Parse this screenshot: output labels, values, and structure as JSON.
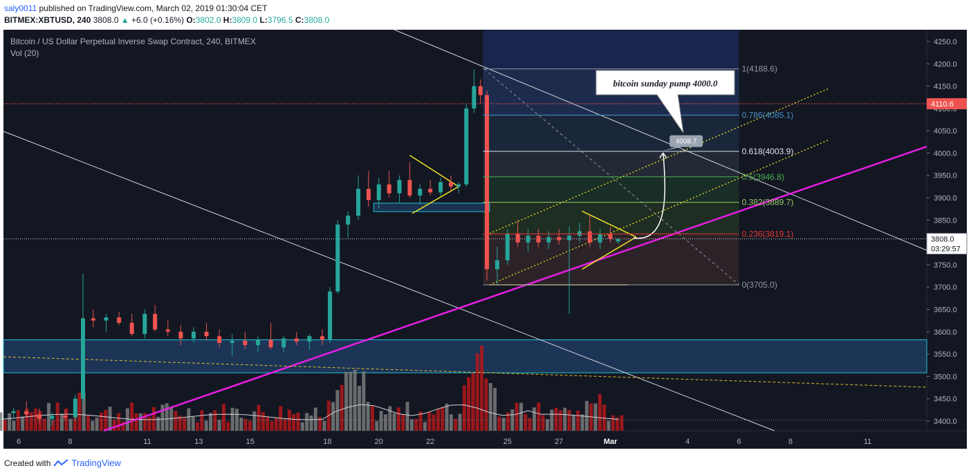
{
  "header": {
    "user": "saly0011",
    "published_text": "published on TradingView.com, March 02, 2019 01:30:04 CET",
    "symbol": "BITMEX:XBTUSD, 240",
    "last": "3808.0",
    "change_icon": "triangle-up-icon",
    "change": "+6.0 (+0.16%)",
    "o_label": "O:",
    "o": "3802.0",
    "h_label": "H:",
    "h": "3809.0",
    "l_label": "L:",
    "l": "3796.5",
    "c_label": "C:",
    "c": "3808.0"
  },
  "footer": {
    "created_with": "Created with",
    "brand": "TradingView",
    "logo_icon": "tradingview-logo-icon"
  },
  "colors": {
    "background": "#131722",
    "up": "#26a69a",
    "down": "#ef5350",
    "magenta": "#e91ee6",
    "yellow": "#f5e625",
    "zone": "#1e3a5f"
  },
  "chart_data": {
    "type": "candlestick",
    "title": "Bitcoin / US Dollar Perpetual Inverse Swap Contract, 240, BITMEX",
    "indicator": "Vol (20)",
    "y_range": [
      3375,
      4275
    ],
    "y_ticks": [
      "4250.0",
      "4200.0",
      "4150.0",
      "4100.0",
      "4050.0",
      "4000.0",
      "3950.0",
      "3900.0",
      "3850.0",
      "3800.0",
      "3750.0",
      "3700.0",
      "3650.0",
      "3600.0",
      "3550.0",
      "3500.0",
      "3450.0",
      "3400.0"
    ],
    "x_ticks": [
      {
        "label": "6",
        "day": 6
      },
      {
        "label": "8",
        "day": 8
      },
      {
        "label": "11",
        "day": 11
      },
      {
        "label": "13",
        "day": 13
      },
      {
        "label": "15",
        "day": 15
      },
      {
        "label": "18",
        "day": 18
      },
      {
        "label": "20",
        "day": 20
      },
      {
        "label": "22",
        "day": 22
      },
      {
        "label": "25",
        "day": 25
      },
      {
        "label": "27",
        "day": 27
      },
      {
        "label": "Mar",
        "day": 29
      },
      {
        "label": "4",
        "day": 32
      },
      {
        "label": "6",
        "day": 34
      },
      {
        "label": "8",
        "day": 36
      },
      {
        "label": "11",
        "day": 39
      }
    ],
    "price_labels": {
      "current": "3808.0",
      "countdown": "03:29:57",
      "red_line": "4110.6",
      "target": "4008.7"
    },
    "red_line_value": 4110.6,
    "current_value": 3808.0,
    "fibonacci": [
      {
        "level": "1",
        "price": 4188.6,
        "label": "1(4188.6)",
        "color": "#9598a1"
      },
      {
        "level": "0.786",
        "price": 4085.1,
        "label": "0.786(4085.1)",
        "color": "#4a90c8"
      },
      {
        "level": "0.618",
        "price": 4003.9,
        "label": "0.618(4003.9)",
        "color": "#e0e3eb"
      },
      {
        "level": "0.5",
        "price": 3946.8,
        "label": "0.5(3946.8)",
        "color": "#4caf50"
      },
      {
        "level": "0.382",
        "price": 3889.7,
        "label": "0.382(3889.7)",
        "color": "#9ccc65"
      },
      {
        "level": "0.236",
        "price": 3819.1,
        "label": "0.236(3819.1)",
        "color": "#e53935"
      },
      {
        "level": "0",
        "price": 3705.0,
        "label": "0(3705.0)",
        "color": "#9598a1"
      }
    ],
    "annotation": "bitcoin sunday pump 4000.0",
    "candles": [
      {
        "day": 5.8,
        "o": 3418,
        "h": 3430,
        "l": 3405,
        "c": 3422
      },
      {
        "day": 6.3,
        "o": 3422,
        "h": 3445,
        "l": 3410,
        "c": 3415
      },
      {
        "day": 6.8,
        "o": 3415,
        "h": 3428,
        "l": 3395,
        "c": 3405
      },
      {
        "day": 7.3,
        "o": 3405,
        "h": 3420,
        "l": 3390,
        "c": 3412
      },
      {
        "day": 7.8,
        "o": 3412,
        "h": 3425,
        "l": 3400,
        "c": 3408
      },
      {
        "day": 8.2,
        "o": 3408,
        "h": 3460,
        "l": 3400,
        "c": 3450
      },
      {
        "day": 8.5,
        "o": 3450,
        "h": 3730,
        "l": 3440,
        "c": 3630
      },
      {
        "day": 8.9,
        "o": 3630,
        "h": 3650,
        "l": 3610,
        "c": 3625
      },
      {
        "day": 9.4,
        "o": 3625,
        "h": 3640,
        "l": 3600,
        "c": 3632
      },
      {
        "day": 9.9,
        "o": 3632,
        "h": 3645,
        "l": 3615,
        "c": 3620
      },
      {
        "day": 10.4,
        "o": 3620,
        "h": 3640,
        "l": 3590,
        "c": 3595
      },
      {
        "day": 10.9,
        "o": 3595,
        "h": 3650,
        "l": 3585,
        "c": 3640
      },
      {
        "day": 11.3,
        "o": 3640,
        "h": 3660,
        "l": 3600,
        "c": 3605
      },
      {
        "day": 11.8,
        "o": 3605,
        "h": 3625,
        "l": 3590,
        "c": 3600
      },
      {
        "day": 12.3,
        "o": 3600,
        "h": 3615,
        "l": 3570,
        "c": 3585
      },
      {
        "day": 12.8,
        "o": 3585,
        "h": 3610,
        "l": 3575,
        "c": 3600
      },
      {
        "day": 13.3,
        "o": 3600,
        "h": 3620,
        "l": 3580,
        "c": 3590
      },
      {
        "day": 13.8,
        "o": 3590,
        "h": 3605,
        "l": 3565,
        "c": 3575
      },
      {
        "day": 14.3,
        "o": 3575,
        "h": 3595,
        "l": 3545,
        "c": 3580
      },
      {
        "day": 14.8,
        "o": 3580,
        "h": 3600,
        "l": 3560,
        "c": 3570
      },
      {
        "day": 15.3,
        "o": 3570,
        "h": 3590,
        "l": 3555,
        "c": 3582
      },
      {
        "day": 15.8,
        "o": 3582,
        "h": 3620,
        "l": 3560,
        "c": 3565
      },
      {
        "day": 16.3,
        "o": 3565,
        "h": 3590,
        "l": 3555,
        "c": 3585
      },
      {
        "day": 16.8,
        "o": 3585,
        "h": 3600,
        "l": 3570,
        "c": 3578
      },
      {
        "day": 17.3,
        "o": 3578,
        "h": 3595,
        "l": 3560,
        "c": 3590
      },
      {
        "day": 17.8,
        "o": 3590,
        "h": 3605,
        "l": 3570,
        "c": 3582
      },
      {
        "day": 18.1,
        "o": 3582,
        "h": 3700,
        "l": 3575,
        "c": 3690
      },
      {
        "day": 18.4,
        "o": 3690,
        "h": 3850,
        "l": 3685,
        "c": 3840
      },
      {
        "day": 18.8,
        "o": 3840,
        "h": 3870,
        "l": 3810,
        "c": 3860
      },
      {
        "day": 19.2,
        "o": 3860,
        "h": 3950,
        "l": 3850,
        "c": 3920
      },
      {
        "day": 19.6,
        "o": 3920,
        "h": 3960,
        "l": 3880,
        "c": 3895
      },
      {
        "day": 20.0,
        "o": 3895,
        "h": 3945,
        "l": 3875,
        "c": 3930
      },
      {
        "day": 20.4,
        "o": 3930,
        "h": 3960,
        "l": 3900,
        "c": 3910
      },
      {
        "day": 20.8,
        "o": 3910,
        "h": 3950,
        "l": 3890,
        "c": 3940
      },
      {
        "day": 21.2,
        "o": 3940,
        "h": 3980,
        "l": 3900,
        "c": 3905
      },
      {
        "day": 21.6,
        "o": 3905,
        "h": 3930,
        "l": 3885,
        "c": 3920
      },
      {
        "day": 22.0,
        "o": 3920,
        "h": 3940,
        "l": 3905,
        "c": 3912
      },
      {
        "day": 22.4,
        "o": 3912,
        "h": 3945,
        "l": 3905,
        "c": 3935
      },
      {
        "day": 22.8,
        "o": 3935,
        "h": 3950,
        "l": 3915,
        "c": 3925
      },
      {
        "day": 23.1,
        "o": 3925,
        "h": 3935,
        "l": 3910,
        "c": 3930
      },
      {
        "day": 23.4,
        "o": 3930,
        "h": 4110,
        "l": 3925,
        "c": 4100
      },
      {
        "day": 23.7,
        "o": 4100,
        "h": 4188,
        "l": 4090,
        "c": 4150
      },
      {
        "day": 23.95,
        "o": 4150,
        "h": 4165,
        "l": 4110,
        "c": 4130
      },
      {
        "day": 24.2,
        "o": 4130,
        "h": 4140,
        "l": 3715,
        "c": 3740
      },
      {
        "day": 24.6,
        "o": 3740,
        "h": 3790,
        "l": 3705,
        "c": 3760
      },
      {
        "day": 25.0,
        "o": 3760,
        "h": 3830,
        "l": 3750,
        "c": 3820
      },
      {
        "day": 25.4,
        "o": 3820,
        "h": 3850,
        "l": 3790,
        "c": 3800
      },
      {
        "day": 25.8,
        "o": 3800,
        "h": 3830,
        "l": 3780,
        "c": 3815
      },
      {
        "day": 26.2,
        "o": 3815,
        "h": 3830,
        "l": 3790,
        "c": 3800
      },
      {
        "day": 26.6,
        "o": 3800,
        "h": 3825,
        "l": 3785,
        "c": 3812
      },
      {
        "day": 27.0,
        "o": 3812,
        "h": 3830,
        "l": 3795,
        "c": 3805
      },
      {
        "day": 27.4,
        "o": 3805,
        "h": 3835,
        "l": 3640,
        "c": 3815
      },
      {
        "day": 27.8,
        "o": 3815,
        "h": 3845,
        "l": 3800,
        "c": 3825
      },
      {
        "day": 28.2,
        "o": 3825,
        "h": 3860,
        "l": 3790,
        "c": 3800
      },
      {
        "day": 28.6,
        "o": 3800,
        "h": 3830,
        "l": 3785,
        "c": 3818
      },
      {
        "day": 29.0,
        "o": 3818,
        "h": 3835,
        "l": 3800,
        "c": 3808
      },
      {
        "day": 29.3,
        "o": 3802,
        "h": 3809,
        "l": 3796.5,
        "c": 3808
      }
    ]
  }
}
